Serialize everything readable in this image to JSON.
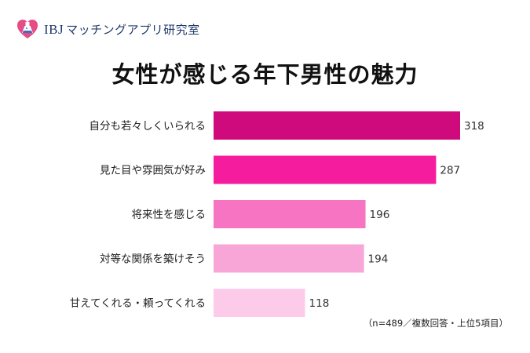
{
  "brand": {
    "name_latin": "IBJ",
    "name_ja": "マッチングアプリ研究室"
  },
  "colors": {
    "brand_navy": "#1f3a6b",
    "heart_pink": "#e64d84",
    "bar_1": "#cf0a7c",
    "bar_2": "#f51c9e",
    "bar_3": "#f674c1",
    "bar_4": "#f8a6d8",
    "bar_5": "#fccbea"
  },
  "chart_data": {
    "type": "bar",
    "orientation": "horizontal",
    "title": "女性が感じる年下男性の魅力",
    "categories": [
      "自分も若々しくいられる",
      "見た目や雰囲気が好み",
      "将来性を感じる",
      "対等な関係を築けそう",
      "甘えてくれる・頼ってくれる"
    ],
    "values": [
      318,
      287,
      196,
      194,
      118
    ],
    "data_labels": [
      "318",
      "287",
      "196",
      "194",
      "118"
    ],
    "xlim": [
      0,
      318
    ],
    "grid": false,
    "legend": "none",
    "note": "（n=489／複数回答・上位5項目）"
  }
}
